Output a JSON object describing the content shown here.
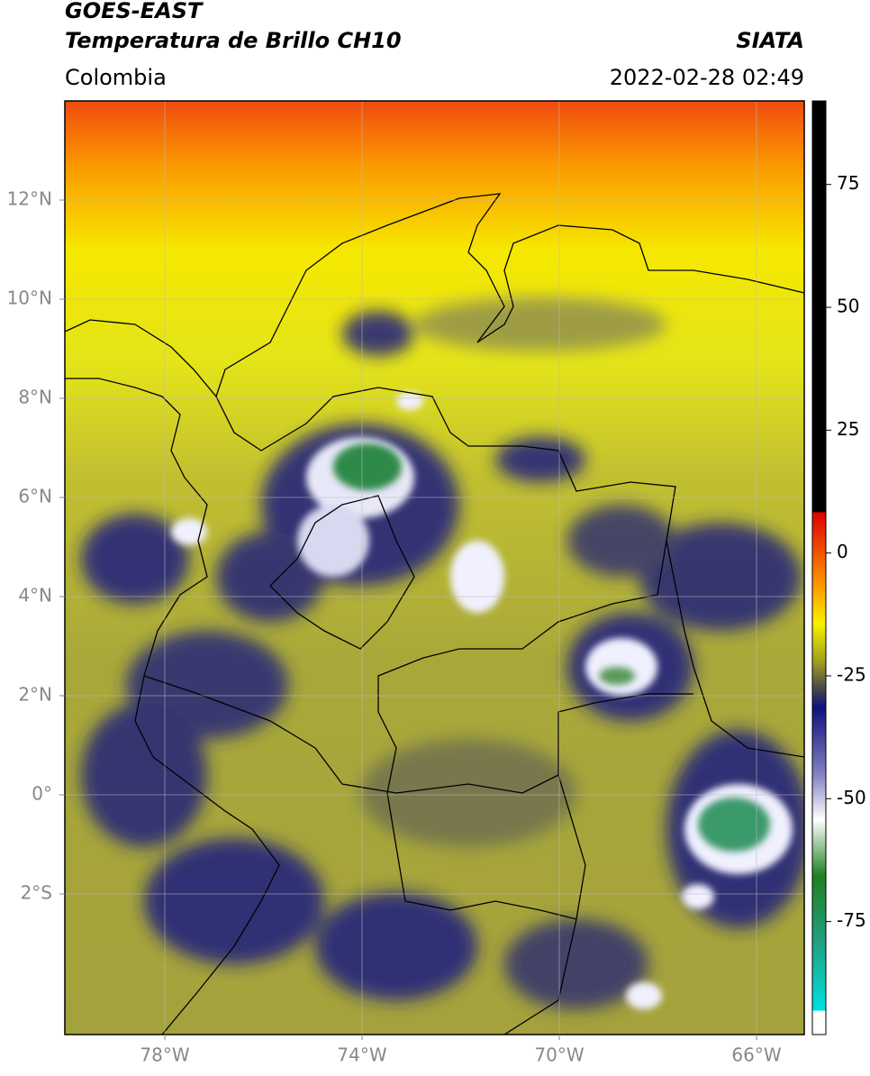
{
  "header": {
    "title": "GOES-EAST",
    "subtitle": "Temperatura de Brillo CH10",
    "source": "SIATA",
    "region": "Colombia",
    "datetime": "2022-02-28 02:49"
  },
  "map": {
    "lat_labels": [
      "12°N",
      "10°N",
      "8°N",
      "6°N",
      "4°N",
      "2°N",
      "0°",
      "2°S"
    ],
    "lon_labels": [
      "78°W",
      "74°W",
      "70°W",
      "66°W"
    ]
  },
  "colorbar": {
    "lim": [
      -98,
      92
    ],
    "ticks": [
      75,
      50,
      25,
      0,
      -25,
      -50,
      -75
    ]
  }
}
